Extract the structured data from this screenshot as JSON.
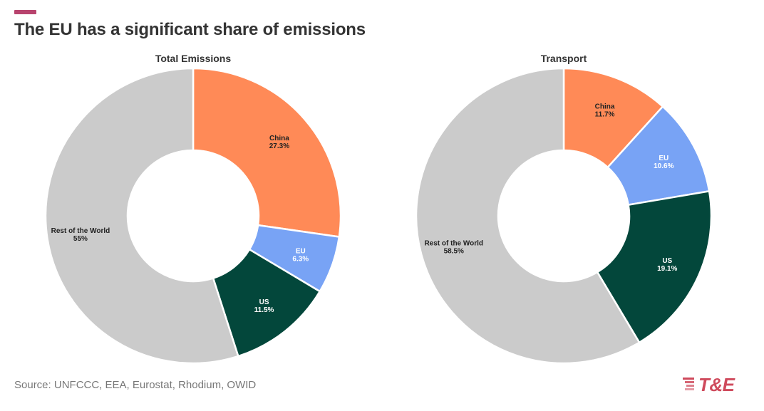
{
  "header": {
    "title": "The EU has a significant share of emissions",
    "accent_color": "#b8446e"
  },
  "footer": {
    "source": "Source: UNFCCC, EEA, Eurostat, Rhodium, OWID",
    "logo_text": "T&E",
    "logo_color": "#cf4a5c"
  },
  "chart_data": [
    {
      "type": "pie",
      "title": "Total Emissions",
      "slices": [
        {
          "name": "China",
          "value": 27.3,
          "label": "27.3%",
          "color": "#ff8a57",
          "text_color": "#222222"
        },
        {
          "name": "EU",
          "value": 6.3,
          "label": "6.3%",
          "color": "#78a3f5",
          "text_color": "#ffffff"
        },
        {
          "name": "US",
          "value": 11.5,
          "label": "11.5%",
          "color": "#03473b",
          "text_color": "#ffffff"
        },
        {
          "name": "Rest of the World",
          "value": 55,
          "label": "55%",
          "color": "#cbcbcb",
          "text_color": "#222222"
        }
      ]
    },
    {
      "type": "pie",
      "title": "Transport",
      "slices": [
        {
          "name": "China",
          "value": 11.7,
          "label": "11.7%",
          "color": "#ff8a57",
          "text_color": "#222222"
        },
        {
          "name": "EU",
          "value": 10.6,
          "label": "10.6%",
          "color": "#78a3f5",
          "text_color": "#ffffff"
        },
        {
          "name": "US",
          "value": 19.1,
          "label": "19.1%",
          "color": "#03473b",
          "text_color": "#ffffff"
        },
        {
          "name": "Rest of the World",
          "value": 58.5,
          "label": "58.5%",
          "color": "#cbcbcb",
          "text_color": "#222222"
        }
      ]
    }
  ]
}
